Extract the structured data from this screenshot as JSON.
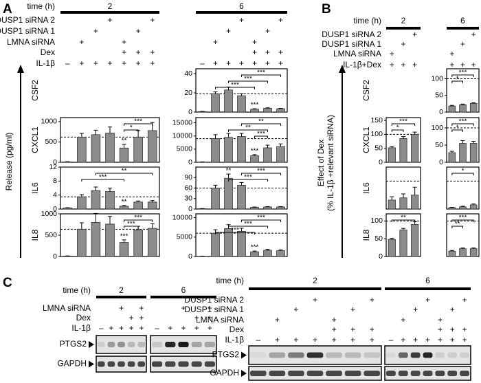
{
  "panel_labels": [
    "A",
    "B",
    "C"
  ],
  "panel_a": {
    "time_label": "time (h)",
    "times": [
      "2",
      "6"
    ],
    "rows": [
      {
        "label": "DUSP1 siRNA 2",
        "cells": [
          null,
          null,
          null,
          "+",
          null,
          null,
          "+",
          null,
          null,
          null,
          "+",
          null,
          null,
          "+"
        ]
      },
      {
        "label": "DUSP1 siRNA 1",
        "cells": [
          null,
          null,
          "+",
          null,
          null,
          "+",
          null,
          null,
          null,
          "+",
          null,
          null,
          "+",
          null
        ]
      },
      {
        "label": "LMNA siRNA",
        "cells": [
          null,
          "+",
          null,
          null,
          "+",
          null,
          null,
          null,
          "+",
          null,
          null,
          "+",
          null,
          null
        ]
      },
      {
        "label": "Dex",
        "cells": [
          null,
          null,
          null,
          null,
          "+",
          "+",
          "+",
          null,
          null,
          null,
          null,
          "+",
          "+",
          "+"
        ]
      },
      {
        "label": "IL-1β",
        "cells": [
          "–",
          "+",
          "+",
          "+",
          "+",
          "+",
          "+",
          "–",
          "+",
          "+",
          "+",
          "+",
          "+",
          "+"
        ]
      }
    ],
    "genes": [
      "CSF2",
      "CXCL1",
      "IL6",
      "IL8"
    ],
    "y_axis_label": "Release (pg/ml)"
  },
  "panel_b": {
    "time_label": "time (h)",
    "times": [
      "2",
      "6"
    ],
    "rows": [
      {
        "label": "DUSP1 siRNA 2",
        "cells": [
          null,
          null,
          "+",
          null,
          null,
          "+"
        ]
      },
      {
        "label": "DUSP1 siRNA 1",
        "cells": [
          null,
          "+",
          null,
          null,
          "+",
          null
        ]
      },
      {
        "label": "LMNA siRNA",
        "cells": [
          "+",
          null,
          null,
          "+",
          null,
          null
        ]
      },
      {
        "label": "IL-1β+Dex",
        "cells": [
          "+",
          "+",
          "+",
          "+",
          "+",
          "+"
        ]
      }
    ],
    "genes": [
      "CSF2",
      "CXCL1",
      "IL6",
      "IL8"
    ],
    "y_axis_label": [
      "Effect of Dex",
      "(% IL-1β +relevant siRNA)"
    ]
  },
  "panel_c": {
    "left": {
      "time_label": "time (h)",
      "times": [
        "2",
        "6"
      ],
      "rows": [
        {
          "label": "LMNA siRNA",
          "cells": [
            null,
            null,
            "+",
            null,
            "+",
            null,
            null,
            "+",
            null,
            "+"
          ]
        },
        {
          "label": "Dex",
          "cells": [
            null,
            null,
            null,
            "+",
            "+",
            null,
            null,
            null,
            "+",
            "+"
          ]
        },
        {
          "label": "IL-1β",
          "cells": [
            "–",
            "+",
            "+",
            "+",
            "+",
            "–",
            "+",
            "+",
            "+",
            "+"
          ]
        }
      ],
      "blots": [
        "PTGS2",
        "GAPDH"
      ]
    },
    "right": {
      "time_label": "time (h)",
      "times": [
        "2",
        "6"
      ],
      "rows": [
        {
          "label": "DUSP1 siRNA 2",
          "cells": [
            null,
            null,
            null,
            "+",
            null,
            null,
            "+",
            null,
            null,
            null,
            "+",
            null,
            null,
            "+"
          ]
        },
        {
          "label": "DUSP1 siRNA 1",
          "cells": [
            null,
            null,
            "+",
            null,
            null,
            "+",
            null,
            null,
            null,
            "+",
            null,
            null,
            "+",
            null
          ]
        },
        {
          "label": "LMNA siRNA",
          "cells": [
            null,
            "+",
            null,
            null,
            "+",
            null,
            null,
            null,
            "+",
            null,
            null,
            "+",
            null,
            null
          ]
        },
        {
          "label": "Dex",
          "cells": [
            null,
            null,
            null,
            null,
            "+",
            "+",
            "+",
            null,
            null,
            null,
            null,
            "+",
            "+",
            "+"
          ]
        },
        {
          "label": "IL-1β",
          "cells": [
            "–",
            "+",
            "+",
            "+",
            "+",
            "+",
            "+",
            "–",
            "+",
            "+",
            "+",
            "+",
            "+",
            "+"
          ]
        }
      ],
      "blots": [
        "PTGS2",
        "GAPDH"
      ]
    }
  },
  "chart_data": [
    {
      "type": "bar",
      "ylim": [
        0,
        1100
      ],
      "yticks": [
        0,
        500,
        1000
      ],
      "values": [
        10,
        620,
        680,
        720,
        350,
        620,
        780
      ],
      "errors": [
        5,
        90,
        110,
        150,
        90,
        160,
        200
      ],
      "reference_line": 620,
      "annotations": [
        {
          "label": "***",
          "bars": [
            4,
            6
          ]
        },
        {
          "label": "*",
          "bars": [
            4,
            5
          ]
        },
        {
          "label": "**",
          "bars": [
            4
          ]
        }
      ]
    },
    {
      "type": "bar",
      "ylim": [
        0,
        12
      ],
      "yticks": [
        0,
        4,
        8,
        12
      ],
      "values": [
        0.3,
        3.5,
        5.3,
        5.0,
        0.8,
        2.0,
        2.0
      ],
      "errors": [
        0.1,
        0.6,
        1.0,
        1.0,
        0.2,
        0.3,
        0.4
      ],
      "reference_line": 3.5,
      "annotations": [
        {
          "label": "**",
          "bars": [
            2,
            6
          ]
        },
        {
          "label": "***",
          "bars": [
            1,
            4
          ]
        },
        {
          "label": "**",
          "bars": [
            4
          ]
        }
      ]
    },
    {
      "type": "bar",
      "ylim": [
        0,
        1000
      ],
      "yticks": [
        0,
        500,
        1000
      ],
      "values": [
        10,
        640,
        800,
        760,
        330,
        620,
        660
      ],
      "errors": [
        5,
        150,
        210,
        180,
        60,
        90,
        110
      ],
      "reference_line": 640,
      "annotations": [
        {
          "label": "***",
          "bars": [
            4,
            6
          ]
        },
        {
          "label": "***",
          "bars": [
            4,
            5
          ]
        },
        {
          "label": "***",
          "bars": [
            4
          ]
        }
      ]
    },
    {
      "type": "bar",
      "ylim": [
        0,
        45
      ],
      "yticks": [
        0,
        20,
        40
      ],
      "values": [
        0.5,
        19,
        23,
        17,
        3,
        4,
        3.5
      ],
      "errors": [
        0.2,
        2,
        3,
        2,
        0.5,
        0.5,
        0.4
      ],
      "reference_line": 19,
      "annotations": [
        {
          "label": "***",
          "bars": [
            3,
            6
          ]
        },
        {
          "label": "***",
          "bars": [
            2,
            5
          ]
        },
        {
          "label": "***",
          "bars": [
            1,
            4
          ]
        },
        {
          "label": "***",
          "bars": [
            4
          ]
        }
      ]
    },
    {
      "type": "bar",
      "ylim": [
        0,
        17000
      ],
      "yticks": [
        0,
        5000,
        10000,
        15000
      ],
      "values": [
        100,
        9000,
        9500,
        9800,
        2500,
        5500,
        6000
      ],
      "errors": [
        50,
        1500,
        1500,
        1200,
        400,
        1000,
        1000
      ],
      "reference_line": 9000,
      "annotations": [
        {
          "label": "**",
          "bars": [
            3,
            6
          ]
        },
        {
          "label": "**",
          "bars": [
            2,
            5
          ]
        },
        {
          "label": "***",
          "bars": [
            4,
            5
          ]
        },
        {
          "label": "***",
          "bars": [
            4
          ]
        }
      ]
    },
    {
      "type": "bar",
      "ylim": [
        0,
        120
      ],
      "yticks": [
        0,
        30,
        60,
        90
      ],
      "values": [
        1,
        60,
        88,
        68,
        5,
        6,
        6
      ],
      "errors": [
        0.5,
        8,
        12,
        8,
        1,
        1,
        1
      ],
      "reference_line": 60,
      "annotations": [
        {
          "label": "***",
          "bars": [
            3,
            6
          ]
        },
        {
          "label": "***",
          "bars": [
            2,
            5
          ]
        },
        {
          "label": "**",
          "bars": [
            2
          ]
        }
      ]
    },
    {
      "type": "bar",
      "ylim": [
        0,
        11000
      ],
      "yticks": [
        0,
        5000,
        10000
      ],
      "values": [
        50,
        6000,
        7200,
        6500,
        1200,
        1600,
        1500
      ],
      "errors": [
        20,
        900,
        1000,
        800,
        200,
        250,
        200
      ],
      "reference_line": 6000,
      "annotations": [
        {
          "label": "***",
          "bars": [
            3,
            6
          ]
        },
        {
          "label": "***",
          "bars": [
            2,
            5
          ]
        },
        {
          "label": "***",
          "bars": [
            1,
            4
          ]
        },
        {
          "label": "***",
          "bars": [
            4
          ]
        }
      ]
    },
    {
      "type": "bar",
      "ylim": [
        0,
        160
      ],
      "yticks": [
        0,
        50,
        100,
        150
      ],
      "values": [
        52,
        85,
        100
      ],
      "errors": [
        4,
        7,
        8
      ],
      "reference_line": 100,
      "annotations": [
        {
          "label": "***",
          "bars": [
            0,
            2
          ]
        },
        {
          "label": "*",
          "bars": [
            0,
            1
          ]
        }
      ]
    },
    {
      "type": "bar",
      "ylim": [
        0,
        150
      ],
      "values": [
        32,
        40,
        50
      ],
      "errors": [
        12,
        14,
        28
      ],
      "reference_line": 100,
      "annotations": []
    },
    {
      "type": "bar",
      "ylim": [
        0,
        120
      ],
      "yticks": [
        0,
        50,
        100
      ],
      "values": [
        48,
        75,
        90
      ],
      "errors": [
        3,
        4,
        8
      ],
      "reference_line": 100,
      "annotations": [
        {
          "label": "**",
          "bars": [
            0,
            2
          ]
        }
      ]
    },
    {
      "type": "bar",
      "ylim": [
        0,
        130
      ],
      "yticks": [
        0,
        50,
        100
      ],
      "values": [
        18,
        22,
        26
      ],
      "errors": [
        2,
        2,
        2
      ],
      "reference_line": 100,
      "annotations": [
        {
          "label": "***",
          "bars": [
            0,
            2
          ]
        },
        {
          "label": "*",
          "bars": [
            0,
            1
          ]
        }
      ]
    },
    {
      "type": "bar",
      "ylim": [
        0,
        130
      ],
      "yticks": [
        0,
        50,
        100
      ],
      "values": [
        28,
        55,
        55
      ],
      "errors": [
        4,
        8,
        6
      ],
      "reference_line": 100,
      "annotations": [
        {
          "label": "***",
          "bars": [
            0,
            2
          ]
        },
        {
          "label": "*",
          "bars": [
            0,
            1
          ]
        }
      ]
    },
    {
      "type": "bar",
      "ylim": [
        0,
        150
      ],
      "values": [
        5,
        8,
        15
      ],
      "errors": [
        1,
        2,
        3
      ],
      "reference_line": 100,
      "annotations": [
        {
          "label": "*",
          "bars": [
            0,
            2
          ]
        }
      ]
    },
    {
      "type": "bar",
      "ylim": [
        0,
        120
      ],
      "values": [
        15,
        22,
        22
      ],
      "errors": [
        2,
        2,
        2
      ],
      "reference_line": 100,
      "annotations": [
        {
          "label": "***",
          "bars": [
            0,
            2
          ]
        },
        {
          "label": "**",
          "bars": [
            0,
            1
          ]
        }
      ]
    }
  ]
}
